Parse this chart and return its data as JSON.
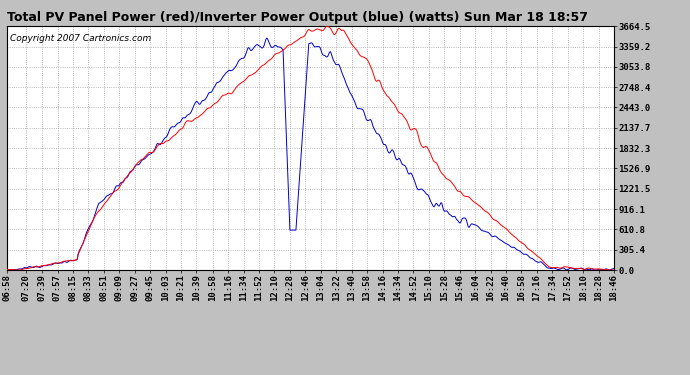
{
  "title": "Total PV Panel Power (red)/Inverter Power Output (blue) (watts) Sun Mar 18 18:57",
  "copyright": "Copyright 2007 Cartronics.com",
  "background_color": "#c0c0c0",
  "plot_bg_color": "#ffffff",
  "grid_color": "#a0a0a0",
  "line_color_red": "#ff0000",
  "line_color_blue": "#0000cc",
  "ytick_labels": [
    "0.0",
    "305.4",
    "610.8",
    "916.1",
    "1221.5",
    "1526.9",
    "1832.3",
    "2137.7",
    "2443.0",
    "2748.4",
    "3053.8",
    "3359.2",
    "3664.5"
  ],
  "ytick_values": [
    0.0,
    305.4,
    610.8,
    916.1,
    1221.5,
    1526.9,
    1832.3,
    2137.7,
    2443.0,
    2748.4,
    3053.8,
    3359.2,
    3664.5
  ],
  "ymax": 3664.5,
  "ymin": 0.0,
  "title_fontsize": 9,
  "copyright_fontsize": 6.5,
  "tick_fontsize": 6.5,
  "xtick_labels": [
    "06:58",
    "07:20",
    "07:39",
    "07:57",
    "08:15",
    "08:33",
    "08:51",
    "09:09",
    "09:27",
    "09:45",
    "10:03",
    "10:21",
    "10:39",
    "10:58",
    "11:16",
    "11:34",
    "11:52",
    "12:10",
    "12:28",
    "12:46",
    "13:04",
    "13:22",
    "13:40",
    "13:58",
    "14:16",
    "14:34",
    "14:52",
    "15:10",
    "15:28",
    "15:46",
    "16:04",
    "16:22",
    "16:40",
    "16:58",
    "17:16",
    "17:34",
    "17:52",
    "18:10",
    "18:28",
    "18:46"
  ]
}
